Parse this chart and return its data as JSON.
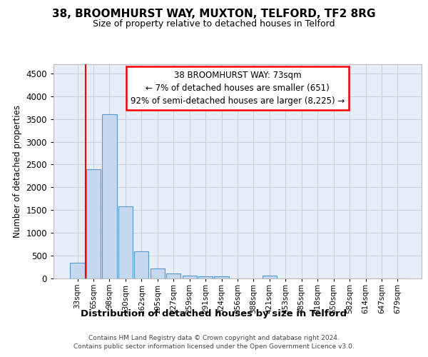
{
  "title_line1": "38, BROOMHURST WAY, MUXTON, TELFORD, TF2 8RG",
  "title_line2": "Size of property relative to detached houses in Telford",
  "xlabel": "Distribution of detached houses by size in Telford",
  "ylabel": "Number of detached properties",
  "categories": [
    "33sqm",
    "65sqm",
    "98sqm",
    "130sqm",
    "162sqm",
    "195sqm",
    "227sqm",
    "259sqm",
    "291sqm",
    "324sqm",
    "356sqm",
    "388sqm",
    "421sqm",
    "453sqm",
    "485sqm",
    "518sqm",
    "550sqm",
    "582sqm",
    "614sqm",
    "647sqm",
    "679sqm"
  ],
  "values": [
    350,
    2400,
    3610,
    1580,
    600,
    220,
    105,
    65,
    50,
    40,
    0,
    0,
    65,
    0,
    0,
    0,
    0,
    0,
    0,
    0,
    0
  ],
  "bar_color": "#c5d8f0",
  "bar_edge_color": "#5599cc",
  "annotation_line1": "38 BROOMHURST WAY: 73sqm",
  "annotation_line2": "← 7% of detached houses are smaller (651)",
  "annotation_line3": "92% of semi-detached houses are larger (8,225) →",
  "annotation_box_color": "white",
  "annotation_box_edge_color": "red",
  "vline_color": "red",
  "vline_index": 1,
  "ylim": [
    0,
    4700
  ],
  "yticks": [
    0,
    500,
    1000,
    1500,
    2000,
    2500,
    3000,
    3500,
    4000,
    4500
  ],
  "bg_color": "#e8eef8",
  "grid_color": "#c5cde0",
  "footer_line1": "Contains HM Land Registry data © Crown copyright and database right 2024.",
  "footer_line2": "Contains public sector information licensed under the Open Government Licence v3.0."
}
